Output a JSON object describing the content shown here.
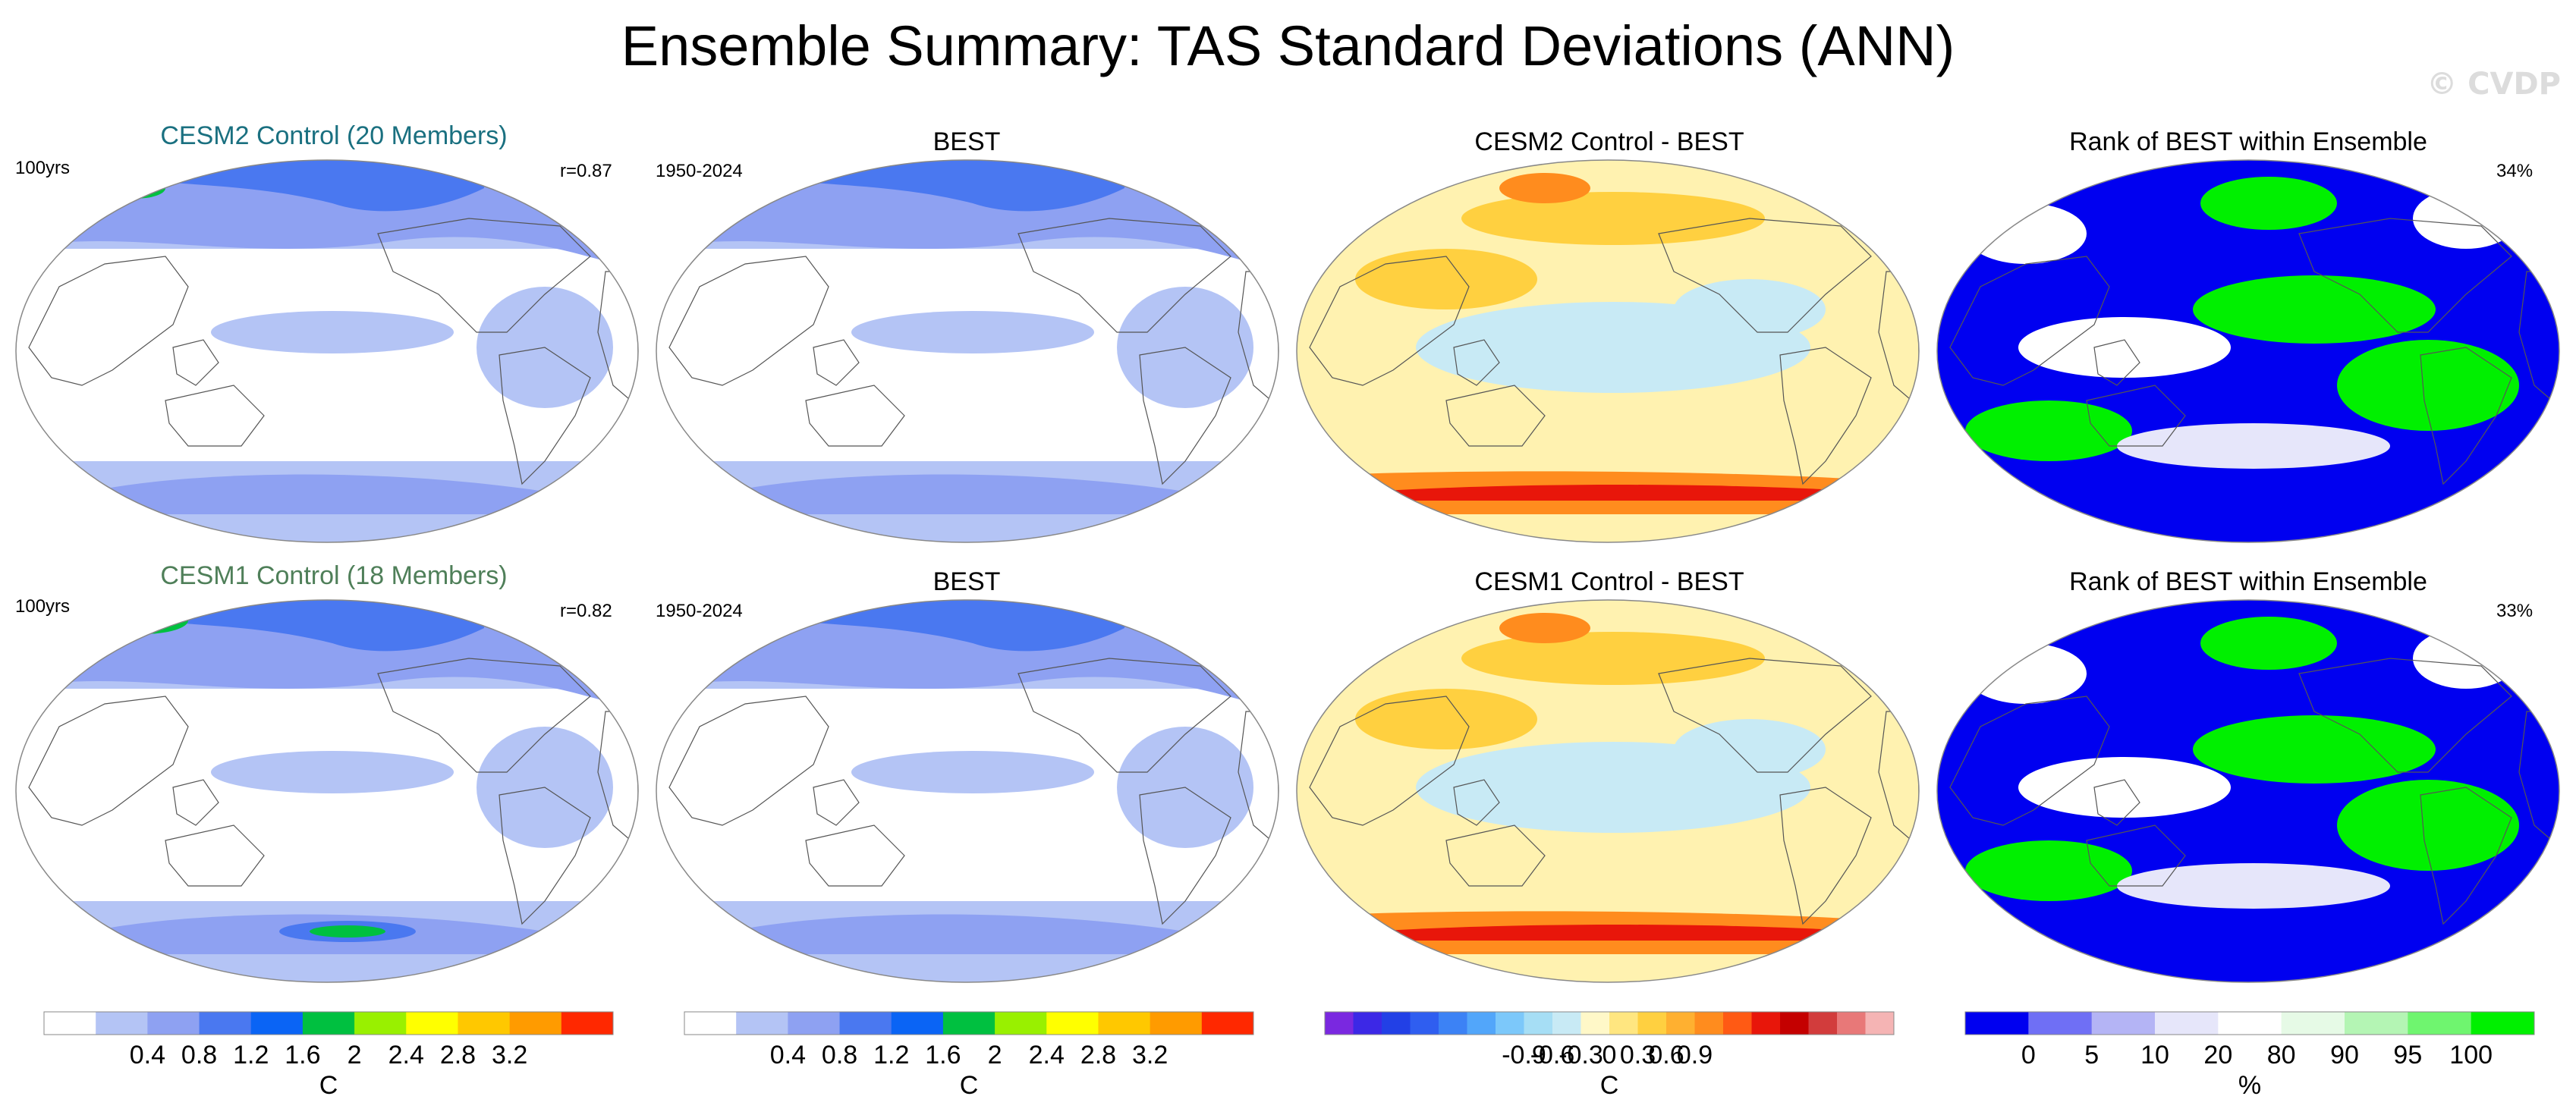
{
  "title": "Ensemble Summary: TAS Standard Deviations (ANN)",
  "logo": "© CVDP",
  "rows": [
    {
      "model_title": "CESM2 Control (20 Members)",
      "model_years": "100yrs",
      "model_r": "r=0.87",
      "obs_title": "BEST",
      "obs_years": "1950-2024",
      "diff_title": "CESM2 Control - BEST",
      "rank_title": "Rank of BEST within Ensemble",
      "rank_pct": "34%",
      "model_color": "#1a7080"
    },
    {
      "model_title": "CESM1 Control (18 Members)",
      "model_years": "100yrs",
      "model_r": "r=0.82",
      "obs_title": "BEST",
      "obs_years": "1950-2024",
      "diff_title": "CESM1 Control - BEST",
      "rank_title": "Rank of BEST within Ensemble",
      "rank_pct": "33%",
      "model_color": "#4f7f59"
    }
  ],
  "chart_data": [
    {
      "type": "colorbar",
      "name": "std-dev",
      "unit": "C",
      "ticks": [
        "0.4",
        "0.8",
        "1.2",
        "1.6",
        "2",
        "2.4",
        "2.8",
        "3.2"
      ],
      "colors": [
        "#ffffff",
        "#b4c4f5",
        "#8ea1f2",
        "#4a78f0",
        "#0a64f5",
        "#00c040",
        "#99f000",
        "#ffff00",
        "#ffc800",
        "#ff9b00",
        "#ff2800"
      ]
    },
    {
      "type": "colorbar",
      "name": "std-dev-obs",
      "unit": "C",
      "ticks": [
        "0.4",
        "0.8",
        "1.2",
        "1.6",
        "2",
        "2.4",
        "2.8",
        "3.2"
      ],
      "colors": [
        "#ffffff",
        "#b4c4f5",
        "#8ea1f2",
        "#4a78f0",
        "#0a64f5",
        "#00c040",
        "#99f000",
        "#ffff00",
        "#ffc800",
        "#ff9b00",
        "#ff2800"
      ]
    },
    {
      "type": "colorbar",
      "name": "difference",
      "unit": "C",
      "ticks": [
        "-0.9",
        "-0.6",
        "-0.3",
        "0",
        "0.3",
        "0.6",
        "0.9"
      ],
      "colors": [
        "#7a28e0",
        "#3c28e6",
        "#2240e6",
        "#2f5ef0",
        "#3c82f5",
        "#52a6fa",
        "#7cc8fa",
        "#a6def5",
        "#c8eaf5",
        "#fff8c8",
        "#ffe680",
        "#ffd040",
        "#ffb030",
        "#ff8c1e",
        "#ff5a14",
        "#e8160a",
        "#c40000",
        "#d23c3c",
        "#e87878",
        "#f5b4b4"
      ]
    },
    {
      "type": "colorbar",
      "name": "rank",
      "unit": "%",
      "ticks": [
        "0",
        "5",
        "10",
        "20",
        "80",
        "90",
        "95",
        "100"
      ],
      "colors": [
        "#0000f0",
        "#6f6ff5",
        "#b4b4f5",
        "#e6e6fa",
        "#ffffff",
        "#e6fae6",
        "#b4f5b4",
        "#6ff56f",
        "#00f000"
      ]
    }
  ]
}
